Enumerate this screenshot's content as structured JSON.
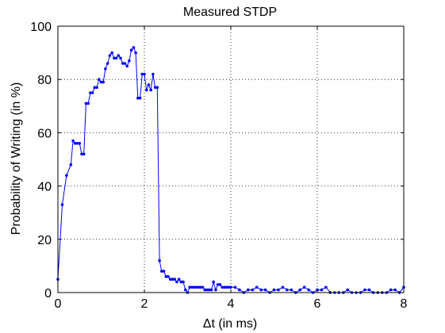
{
  "chart_data": {
    "type": "line",
    "title": "Measured STDP",
    "xlabel": "Δt (in ms)",
    "ylabel": "Probability of Writing (in %)",
    "xlim": [
      0,
      8
    ],
    "ylim": [
      0,
      100
    ],
    "xticks": [
      0,
      2,
      4,
      6,
      8
    ],
    "yticks": [
      0,
      20,
      40,
      60,
      80,
      100
    ],
    "grid": true,
    "series_color": "#0000ff",
    "series": [
      {
        "x": [
          0.0,
          0.1,
          0.2,
          0.3,
          0.35,
          0.4,
          0.45,
          0.5,
          0.55,
          0.6,
          0.65,
          0.7,
          0.75,
          0.8,
          0.85,
          0.9,
          0.95,
          1.0,
          1.05,
          1.1,
          1.15,
          1.2,
          1.25,
          1.3,
          1.35,
          1.4,
          1.45,
          1.5,
          1.55,
          1.6,
          1.65,
          1.7,
          1.75,
          1.8,
          1.85,
          1.9,
          1.95,
          2.0,
          2.05,
          2.1,
          2.15,
          2.2,
          2.25,
          2.3,
          2.35,
          2.4,
          2.45,
          2.5,
          2.55,
          2.6,
          2.65,
          2.7,
          2.75,
          2.8,
          2.85,
          2.9,
          2.95,
          3.0,
          3.05,
          3.1,
          3.15,
          3.2,
          3.25,
          3.3,
          3.35,
          3.4,
          3.45,
          3.5,
          3.55,
          3.6,
          3.65,
          3.7,
          3.75,
          3.8,
          3.85,
          3.9,
          3.95,
          4.0,
          4.1,
          4.2,
          4.3,
          4.4,
          4.5,
          4.6,
          4.7,
          4.8,
          4.9,
          5.0,
          5.1,
          5.2,
          5.3,
          5.4,
          5.5,
          5.6,
          5.7,
          5.8,
          5.9,
          6.0,
          6.1,
          6.2,
          6.3,
          6.4,
          6.5,
          6.6,
          6.7,
          6.8,
          6.9,
          7.0,
          7.1,
          7.2,
          7.3,
          7.4,
          7.5,
          7.6,
          7.7,
          7.8,
          7.9,
          8.0
        ],
        "y": [
          5,
          33,
          44,
          48,
          57,
          56,
          56,
          56,
          52,
          52,
          71,
          71,
          75,
          75,
          77,
          77,
          80,
          79,
          79,
          84,
          86,
          89,
          90,
          88,
          88,
          89,
          88,
          86,
          86,
          85,
          87,
          91,
          92,
          90,
          73,
          73,
          82,
          82,
          76,
          78,
          76,
          82,
          77,
          77,
          12,
          8,
          8,
          6,
          6,
          5,
          5,
          5,
          4,
          5,
          4,
          4,
          1,
          0,
          2,
          2,
          2,
          2,
          2,
          2,
          2,
          1,
          1,
          1,
          1,
          4,
          1,
          3,
          3,
          2,
          2,
          2,
          2,
          2,
          2,
          1,
          0,
          1,
          1,
          2,
          1,
          1,
          0,
          1,
          1,
          2,
          1,
          1,
          0,
          1,
          2,
          1,
          0,
          1,
          1,
          2,
          0,
          0,
          0,
          0,
          1,
          0,
          0,
          0,
          1,
          1,
          0,
          0,
          0,
          0,
          1,
          1,
          0,
          2
        ]
      }
    ]
  }
}
